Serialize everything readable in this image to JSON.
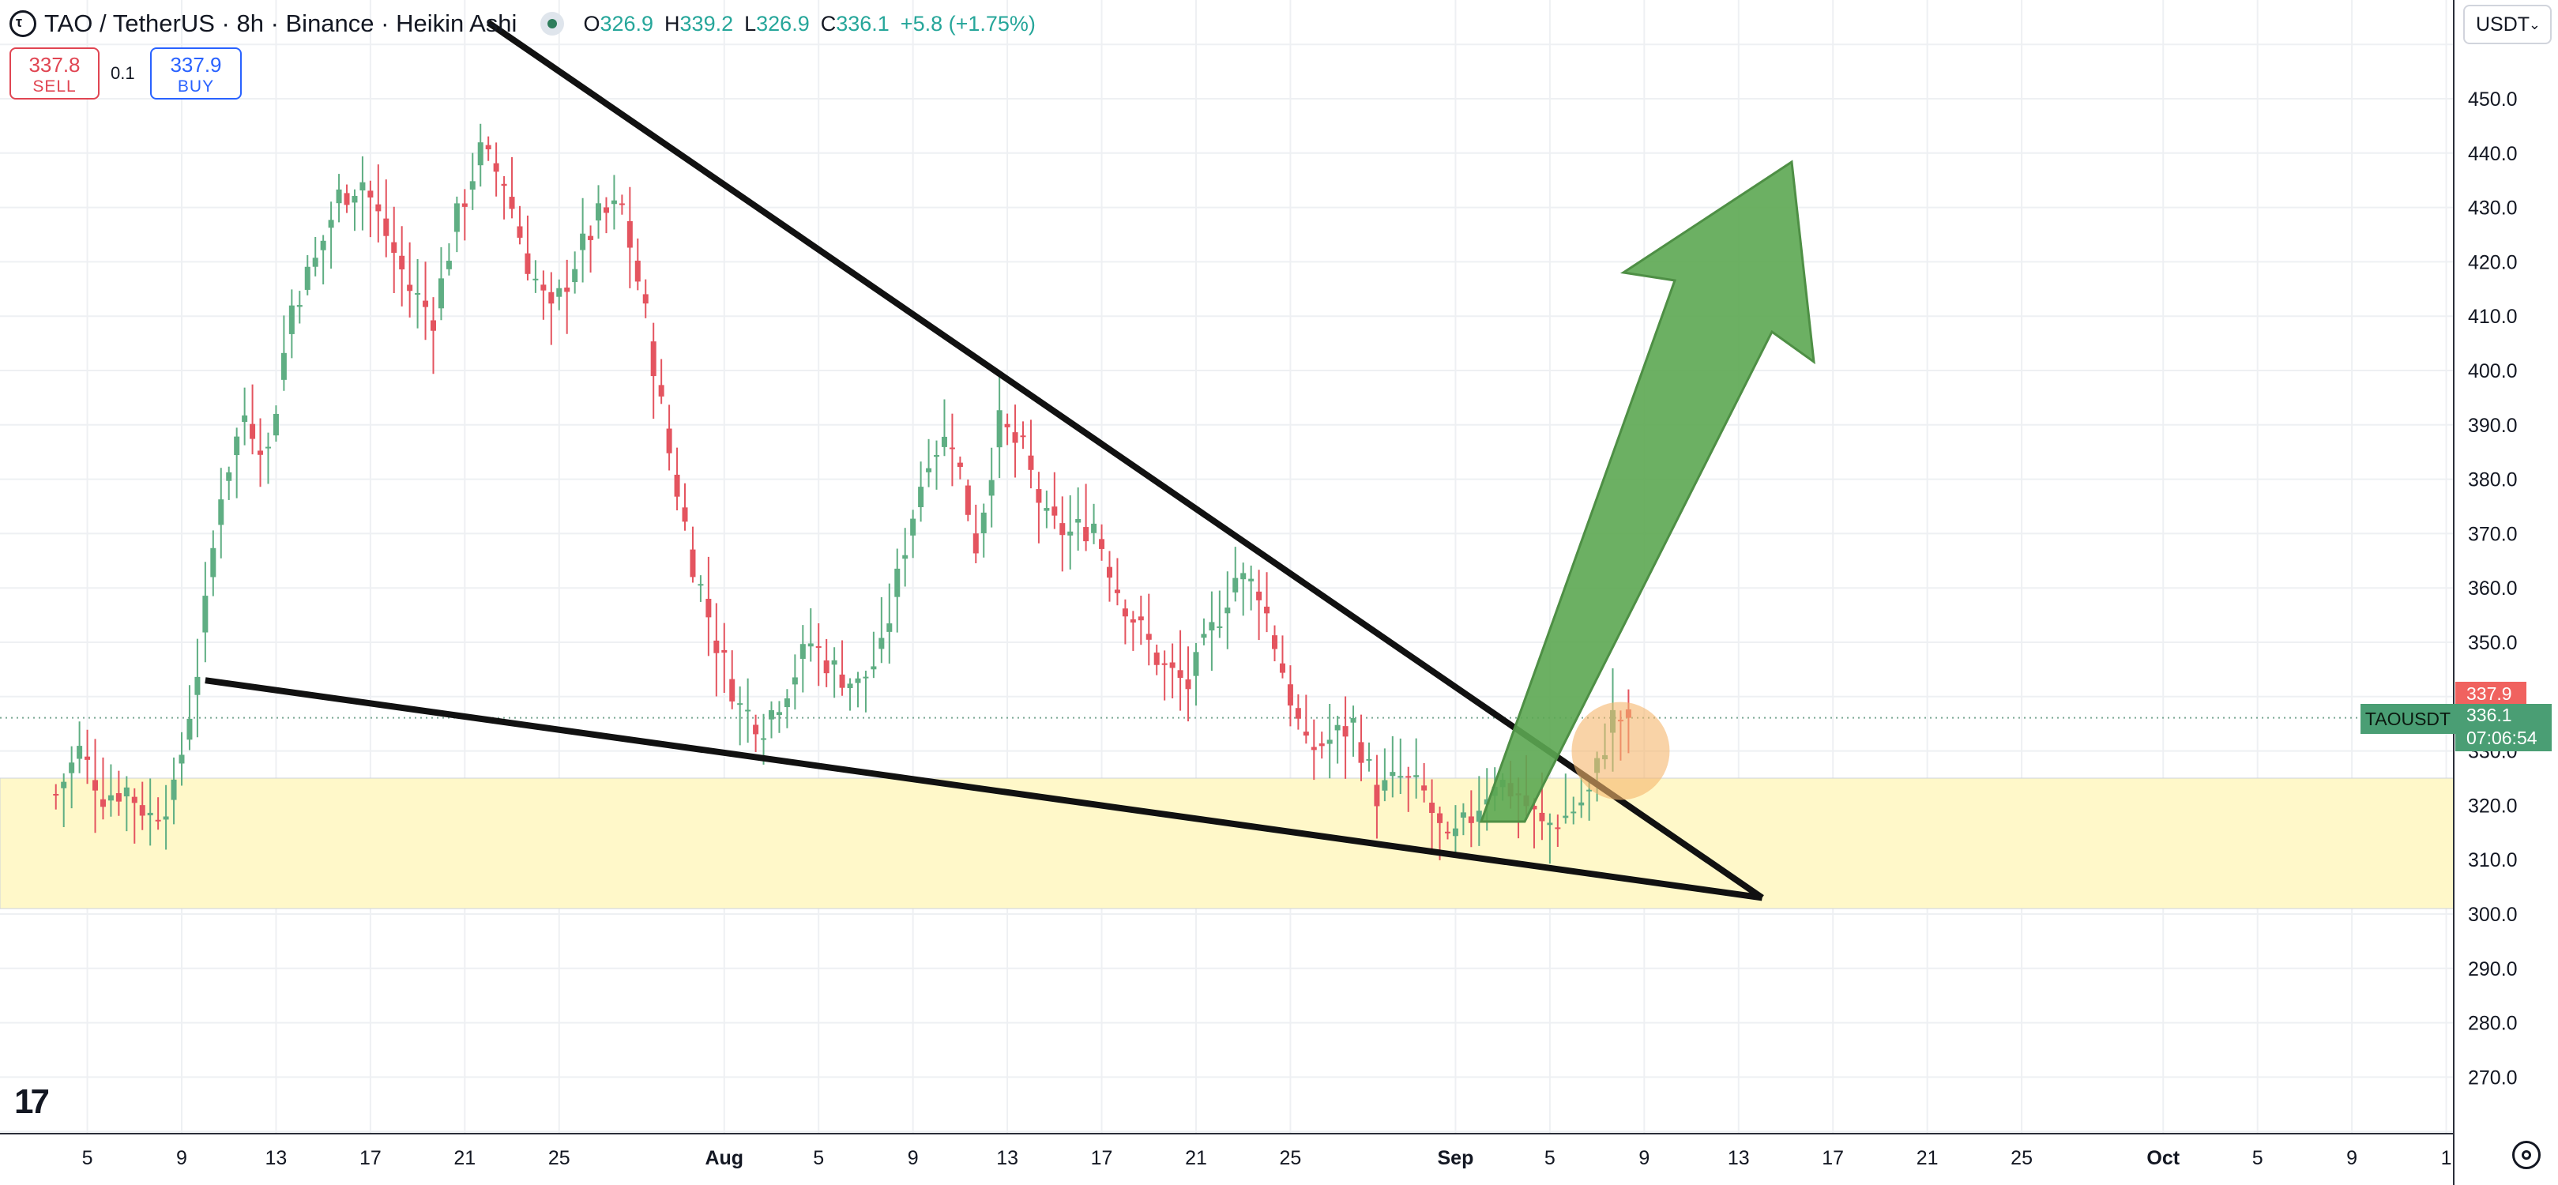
{
  "header": {
    "symbol_title": "TAO / TetherUS · 8h · Binance · Heikin Ashi",
    "logo_letter": "τ",
    "ohlc": {
      "o_label": "O",
      "o_value": "326.9",
      "h_label": "H",
      "h_value": "339.2",
      "l_label": "L",
      "l_value": "326.9",
      "c_label": "C",
      "c_value": "336.1",
      "change": "+5.8 (+1.75%)"
    }
  },
  "trade": {
    "sell_price": "337.8",
    "sell_label": "SELL",
    "spread": "0.1",
    "buy_price": "337.9",
    "buy_label": "BUY"
  },
  "currency": {
    "value": "USDT",
    "chevron": "⌄"
  },
  "price_tags": {
    "symbol": "TAOUSDT",
    "buy_price": "337.9",
    "last_price": "336.1",
    "countdown": "07:06:54"
  },
  "colors": {
    "bull": "#5fae83",
    "bear": "#e4545f",
    "zone": "#fff8c9",
    "arrow": "#5ca752",
    "circle": "#f5b66c",
    "trendline": "#111111",
    "grid": "#eef0f3"
  },
  "icons": {
    "tradingview_logo": "tv-logo-icon",
    "settings": "gear-icon",
    "visibility": "eye-icon"
  },
  "tv_logo_text": "17",
  "chart_data": {
    "type": "candlestick",
    "style": "Heikin Ashi",
    "interval": "8h",
    "y_axis_ticks": [
      270,
      280,
      290,
      300,
      310,
      320,
      330,
      340,
      350,
      360,
      370,
      380,
      390,
      400,
      410,
      420,
      430,
      440,
      450
    ],
    "y_axis_tick_labels": [
      "270.0",
      "280.0",
      "290.0",
      "300.0",
      "310.0",
      "320.0",
      "330.0",
      "340.0",
      "350.0",
      "360.0",
      "370.0",
      "380.0",
      "390.0",
      "400.0",
      "410.0",
      "420.0",
      "430.0",
      "440.0",
      "450.0"
    ],
    "ylim": [
      258,
      464
    ],
    "x_axis_labels": [
      "5",
      "9",
      "13",
      "17",
      "21",
      "25",
      "Aug",
      "5",
      "9",
      "13",
      "17",
      "21",
      "25",
      "Sep",
      "5",
      "9",
      "13",
      "17",
      "21",
      "25",
      "Oct",
      "5",
      "9",
      "1"
    ],
    "x_axis_label_bold": [
      "Aug",
      "Sep",
      "Oct"
    ],
    "daily_closes": [
      {
        "x": "Jul 4",
        "y": 322
      },
      {
        "x": "Jul 5",
        "y": 330
      },
      {
        "x": "Jul 6",
        "y": 322
      },
      {
        "x": "Jul 7",
        "y": 323
      },
      {
        "x": "Jul 8",
        "y": 318
      },
      {
        "x": "Jul 9",
        "y": 322
      },
      {
        "x": "Jul 10",
        "y": 345
      },
      {
        "x": "Jul 11",
        "y": 378
      },
      {
        "x": "Jul 12",
        "y": 392
      },
      {
        "x": "Jul 13",
        "y": 385
      },
      {
        "x": "Jul 14",
        "y": 412
      },
      {
        "x": "Jul 15",
        "y": 420
      },
      {
        "x": "Jul 16",
        "y": 432
      },
      {
        "x": "Jul 17",
        "y": 435
      },
      {
        "x": "Jul 18",
        "y": 425
      },
      {
        "x": "Jul 19",
        "y": 415
      },
      {
        "x": "Jul 20",
        "y": 410
      },
      {
        "x": "Jul 21",
        "y": 428
      },
      {
        "x": "Jul 22",
        "y": 440
      },
      {
        "x": "Jul 23",
        "y": 435
      },
      {
        "x": "Jul 24",
        "y": 420
      },
      {
        "x": "Jul 25",
        "y": 410
      },
      {
        "x": "Jul 26",
        "y": 420
      },
      {
        "x": "Jul 27",
        "y": 428
      },
      {
        "x": "Jul 28",
        "y": 430
      },
      {
        "x": "Jul 29",
        "y": 410
      },
      {
        "x": "Jul 30",
        "y": 385
      },
      {
        "x": "Jul 31",
        "y": 365
      },
      {
        "x": "Aug 1",
        "y": 350
      },
      {
        "x": "Aug 2",
        "y": 338
      },
      {
        "x": "Aug 3",
        "y": 335
      },
      {
        "x": "Aug 4",
        "y": 342
      },
      {
        "x": "Aug 5",
        "y": 350
      },
      {
        "x": "Aug 6",
        "y": 345
      },
      {
        "x": "Aug 7",
        "y": 342
      },
      {
        "x": "Aug 8",
        "y": 348
      },
      {
        "x": "Aug 9",
        "y": 368
      },
      {
        "x": "Aug 10",
        "y": 385
      },
      {
        "x": "Aug 11",
        "y": 388
      },
      {
        "x": "Aug 12",
        "y": 368
      },
      {
        "x": "Aug 13",
        "y": 390
      },
      {
        "x": "Aug 14",
        "y": 385
      },
      {
        "x": "Aug 15",
        "y": 372
      },
      {
        "x": "Aug 16",
        "y": 370
      },
      {
        "x": "Aug 17",
        "y": 372
      },
      {
        "x": "Aug 18",
        "y": 360
      },
      {
        "x": "Aug 19",
        "y": 352
      },
      {
        "x": "Aug 20",
        "y": 345
      },
      {
        "x": "Aug 21",
        "y": 342
      },
      {
        "x": "Aug 22",
        "y": 352
      },
      {
        "x": "Aug 23",
        "y": 362
      },
      {
        "x": "Aug 24",
        "y": 360
      },
      {
        "x": "Aug 25",
        "y": 345
      },
      {
        "x": "Aug 26",
        "y": 330
      },
      {
        "x": "Aug 27",
        "y": 332
      },
      {
        "x": "Aug 28",
        "y": 335
      },
      {
        "x": "Aug 29",
        "y": 322
      },
      {
        "x": "Aug 30",
        "y": 325
      },
      {
        "x": "Aug 31",
        "y": 322
      },
      {
        "x": "Sep 1",
        "y": 312
      },
      {
        "x": "Sep 2",
        "y": 318
      },
      {
        "x": "Sep 3",
        "y": 325
      },
      {
        "x": "Sep 4",
        "y": 322
      },
      {
        "x": "Sep 5",
        "y": 316
      },
      {
        "x": "Sep 6",
        "y": 318
      },
      {
        "x": "Sep 7",
        "y": 322
      },
      {
        "x": "Sep 8",
        "y": 336.1
      }
    ],
    "current_price": 336.1,
    "annotations": {
      "upper_trendline": {
        "from": {
          "x": "Jul 22",
          "y": 464
        },
        "to": {
          "x": "Sep 14",
          "y": 303
        }
      },
      "lower_trendline": {
        "from": {
          "x": "Jul 10",
          "y": 343
        },
        "to": {
          "x": "Sep 14",
          "y": 303
        }
      },
      "support_zone": {
        "y_low": 301,
        "y_high": 325
      },
      "breakout_circle": {
        "x": "Sep 8",
        "y": 330
      },
      "arrow": "up"
    }
  }
}
